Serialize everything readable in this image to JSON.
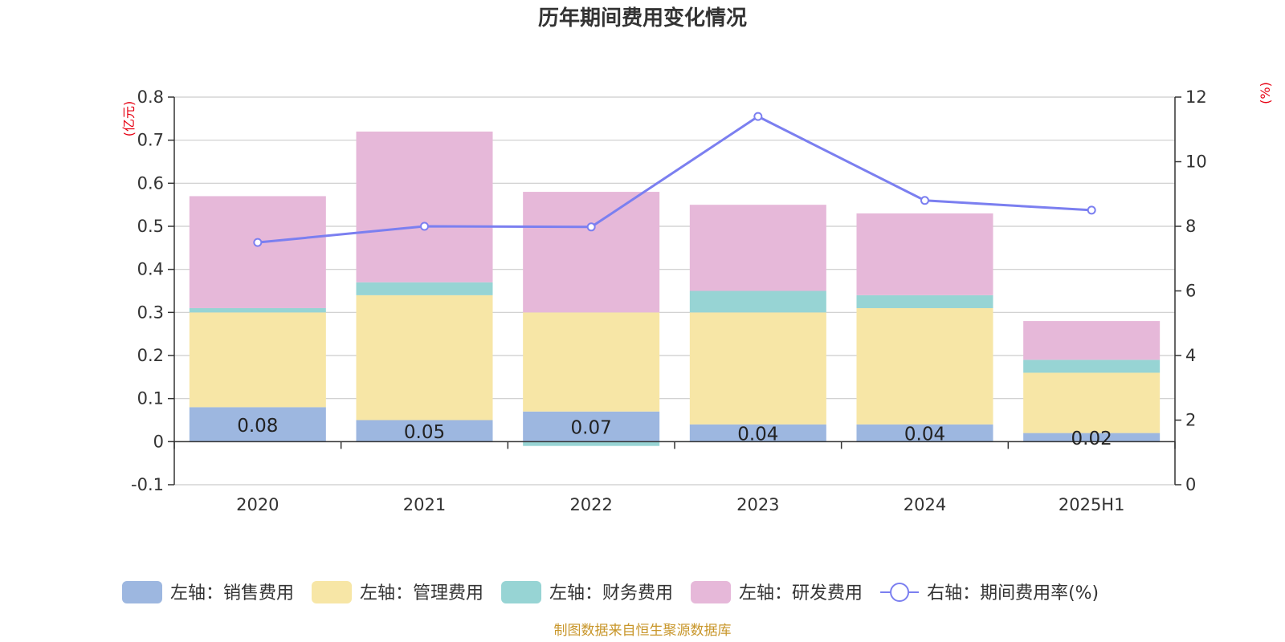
{
  "chart_data": {
    "type": "bar",
    "title": "历年期间费用变化情况",
    "categories": [
      "2020",
      "2021",
      "2022",
      "2023",
      "2024",
      "2025H1"
    ],
    "left_axis": {
      "unit": "(亿元)",
      "ticks": [
        "0.8",
        "0.7",
        "0.6",
        "0.5",
        "0.4",
        "0.3",
        "0.2",
        "0.1",
        "0",
        "-0.1"
      ],
      "min": -0.1,
      "max": 0.8
    },
    "right_axis": {
      "unit": "(%)",
      "ticks": [
        "12",
        "10",
        "8",
        "6",
        "4",
        "2",
        "0"
      ],
      "min": 0,
      "max": 12
    },
    "grid": true,
    "series": [
      {
        "name": "左轴：销售费用",
        "kind": "bar",
        "axis": "left",
        "color": "#9db7e0",
        "values": [
          0.08,
          0.05,
          0.07,
          0.04,
          0.04,
          0.02
        ],
        "labels": [
          "0.08",
          "0.05",
          "0.07",
          "0.04",
          "0.04",
          "0.02"
        ]
      },
      {
        "name": "左轴：管理费用",
        "kind": "bar",
        "axis": "left",
        "color": "#f7e6a6",
        "values": [
          0.22,
          0.29,
          0.23,
          0.26,
          0.27,
          0.14
        ]
      },
      {
        "name": "左轴：财务费用",
        "kind": "bar",
        "axis": "left",
        "color": "#97d4d4",
        "values": [
          0.01,
          0.03,
          -0.01,
          0.05,
          0.03,
          0.03
        ]
      },
      {
        "name": "左轴：研发费用",
        "kind": "bar",
        "axis": "left",
        "color": "#e6b8d9",
        "values": [
          0.26,
          0.35,
          0.28,
          0.2,
          0.19,
          0.09
        ]
      },
      {
        "name": "右轴：期间费用率(%)",
        "kind": "line",
        "axis": "right",
        "color": "#7b7ff0",
        "values": [
          7.5,
          8.0,
          7.98,
          11.4,
          8.8,
          8.5
        ]
      }
    ],
    "legend_position": "bottom",
    "source": "制图数据来自恒生聚源数据库"
  }
}
